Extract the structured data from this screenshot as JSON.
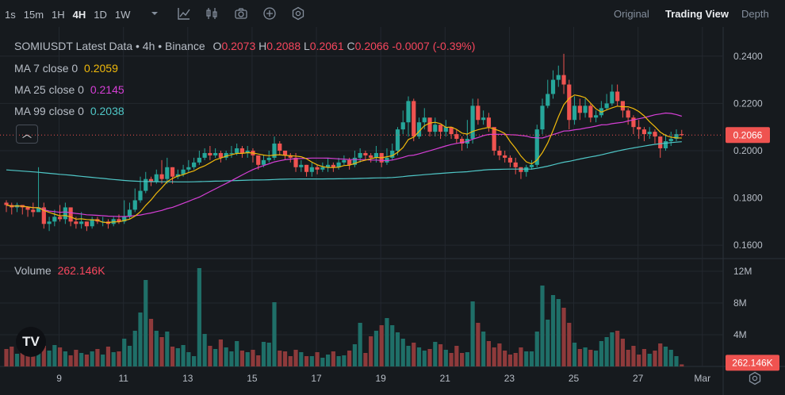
{
  "toolbar": {
    "timeframes": [
      "1s",
      "15m",
      "1H",
      "4H",
      "1D",
      "1W"
    ],
    "active_timeframe": "4H",
    "tools": [
      "dropdown-icon",
      "indicator-icon",
      "candle-type-icon",
      "camera-icon",
      "add-icon",
      "settings-icon"
    ],
    "views": [
      "Original",
      "Trading View",
      "Depth"
    ],
    "active_view": "Trading View"
  },
  "legend": {
    "title": "SOMIUSDT Latest Data • 4h • Binance",
    "open_label": "O",
    "open": "0.2073",
    "high_label": "H",
    "high": "0.2088",
    "low_label": "L",
    "low": "0.2061",
    "close_label": "C",
    "close": "0.2066",
    "change": "-0.0007 (-0.39%)",
    "ma7_label": "MA 7 close 0",
    "ma7_value": "0.2059",
    "ma25_label": "MA 25 close 0",
    "ma25_value": "0.2145",
    "ma99_label": "MA 99 close 0",
    "ma99_value": "0.2038",
    "volume_label": "Volume",
    "volume_value": "262.146K"
  },
  "colors": {
    "up": "#26a69a",
    "down": "#ef5350",
    "ma7": "#f0b90b",
    "ma25": "#d63fd6",
    "ma99": "#4fc7c7",
    "volume_up": "#1f6f68",
    "volume_down": "#8e3a3b"
  },
  "chart_data": {
    "type": "candlestick",
    "symbol": "SOMIUSDT",
    "interval": "4h",
    "price_axis": {
      "ticks": [
        "0.2400",
        "0.2200",
        "0.2000",
        "0.1800",
        "0.1600"
      ],
      "range": [
        0.155,
        0.249
      ]
    },
    "last_price_label": "0.2066",
    "volume_axis": {
      "ticks": [
        "12M",
        "8M",
        "4M"
      ],
      "range": [
        0,
        13000000
      ]
    },
    "last_volume_label": "262.146K",
    "x_ticks": [
      {
        "label": "9",
        "index": 6
      },
      {
        "label": "11",
        "index": 18
      },
      {
        "label": "13",
        "index": 30
      },
      {
        "label": "15",
        "index": 42
      },
      {
        "label": "17",
        "index": 54
      },
      {
        "label": "19",
        "index": 66
      },
      {
        "label": "21",
        "index": 78
      },
      {
        "label": "23",
        "index": 90
      },
      {
        "label": "25",
        "index": 102
      },
      {
        "label": "27",
        "index": 114
      },
      {
        "label": "Mar",
        "index": 126
      }
    ],
    "closes": [
      0.177,
      0.176,
      0.177,
      0.176,
      0.175,
      0.174,
      0.176,
      0.169,
      0.17,
      0.172,
      0.171,
      0.176,
      0.17,
      0.169,
      0.17,
      0.168,
      0.171,
      0.17,
      0.17,
      0.169,
      0.171,
      0.17,
      0.172,
      0.175,
      0.179,
      0.183,
      0.188,
      0.187,
      0.19,
      0.188,
      0.193,
      0.189,
      0.19,
      0.192,
      0.193,
      0.195,
      0.197,
      0.199,
      0.198,
      0.199,
      0.197,
      0.199,
      0.199,
      0.201,
      0.199,
      0.2,
      0.198,
      0.194,
      0.196,
      0.197,
      0.203,
      0.2,
      0.198,
      0.197,
      0.193,
      0.194,
      0.191,
      0.193,
      0.192,
      0.193,
      0.194,
      0.193,
      0.195,
      0.196,
      0.194,
      0.197,
      0.199,
      0.198,
      0.197,
      0.199,
      0.195,
      0.197,
      0.2,
      0.209,
      0.212,
      0.221,
      0.206,
      0.212,
      0.214,
      0.208,
      0.211,
      0.208,
      0.21,
      0.207,
      0.205,
      0.203,
      0.205,
      0.219,
      0.213,
      0.214,
      0.21,
      0.2,
      0.198,
      0.197,
      0.195,
      0.193,
      0.191,
      0.193,
      0.194,
      0.209,
      0.219,
      0.224,
      0.23,
      0.232,
      0.228,
      0.213,
      0.219,
      0.216,
      0.219,
      0.214,
      0.215,
      0.218,
      0.22,
      0.225,
      0.221,
      0.217,
      0.214,
      0.21,
      0.209,
      0.207,
      0.208,
      0.206,
      0.201,
      0.204,
      0.205,
      0.207,
      0.2066
    ],
    "highs": [
      0.179,
      0.178,
      0.178,
      0.177,
      0.176,
      0.178,
      0.193,
      0.178,
      0.172,
      0.175,
      0.177,
      0.178,
      0.176,
      0.172,
      0.174,
      0.17,
      0.172,
      0.172,
      0.172,
      0.171,
      0.172,
      0.173,
      0.179,
      0.178,
      0.184,
      0.189,
      0.191,
      0.189,
      0.192,
      0.196,
      0.197,
      0.193,
      0.192,
      0.194,
      0.196,
      0.197,
      0.2,
      0.201,
      0.202,
      0.201,
      0.2,
      0.2,
      0.202,
      0.203,
      0.202,
      0.202,
      0.201,
      0.197,
      0.198,
      0.2,
      0.206,
      0.204,
      0.2,
      0.199,
      0.199,
      0.196,
      0.194,
      0.195,
      0.194,
      0.195,
      0.197,
      0.195,
      0.197,
      0.198,
      0.197,
      0.2,
      0.201,
      0.2,
      0.199,
      0.202,
      0.199,
      0.201,
      0.203,
      0.21,
      0.217,
      0.223,
      0.222,
      0.214,
      0.218,
      0.213,
      0.214,
      0.211,
      0.213,
      0.21,
      0.209,
      0.206,
      0.213,
      0.222,
      0.222,
      0.217,
      0.216,
      0.208,
      0.202,
      0.2,
      0.198,
      0.197,
      0.193,
      0.194,
      0.196,
      0.211,
      0.222,
      0.23,
      0.234,
      0.236,
      0.241,
      0.23,
      0.223,
      0.222,
      0.222,
      0.22,
      0.217,
      0.221,
      0.224,
      0.228,
      0.228,
      0.22,
      0.218,
      0.215,
      0.213,
      0.21,
      0.21,
      0.209,
      0.206,
      0.207,
      0.208,
      0.209,
      0.2088
    ],
    "lows": [
      0.174,
      0.173,
      0.174,
      0.173,
      0.172,
      0.172,
      0.175,
      0.167,
      0.166,
      0.168,
      0.17,
      0.169,
      0.168,
      0.167,
      0.167,
      0.166,
      0.167,
      0.169,
      0.168,
      0.167,
      0.168,
      0.169,
      0.169,
      0.171,
      0.174,
      0.178,
      0.182,
      0.185,
      0.186,
      0.186,
      0.186,
      0.186,
      0.188,
      0.189,
      0.191,
      0.192,
      0.194,
      0.196,
      0.196,
      0.197,
      0.195,
      0.196,
      0.197,
      0.198,
      0.197,
      0.197,
      0.195,
      0.192,
      0.193,
      0.195,
      0.196,
      0.198,
      0.196,
      0.195,
      0.191,
      0.191,
      0.189,
      0.189,
      0.19,
      0.191,
      0.191,
      0.191,
      0.192,
      0.194,
      0.192,
      0.193,
      0.195,
      0.196,
      0.195,
      0.195,
      0.193,
      0.194,
      0.196,
      0.198,
      0.207,
      0.206,
      0.204,
      0.205,
      0.209,
      0.206,
      0.206,
      0.205,
      0.206,
      0.205,
      0.203,
      0.2,
      0.201,
      0.203,
      0.211,
      0.211,
      0.208,
      0.198,
      0.196,
      0.195,
      0.193,
      0.19,
      0.188,
      0.189,
      0.192,
      0.193,
      0.207,
      0.218,
      0.222,
      0.227,
      0.224,
      0.209,
      0.211,
      0.213,
      0.214,
      0.212,
      0.212,
      0.214,
      0.217,
      0.219,
      0.219,
      0.214,
      0.211,
      0.207,
      0.205,
      0.204,
      0.205,
      0.203,
      0.197,
      0.2,
      0.202,
      0.204,
      0.2061
    ],
    "volumes": [
      2.2,
      2.5,
      1.6,
      1.7,
      2.4,
      3.1,
      4.2,
      2.6,
      2.0,
      2.7,
      2.4,
      1.9,
      1.4,
      2.1,
      1.7,
      1.5,
      1.9,
      2.2,
      1.5,
      2.5,
      1.8,
      1.9,
      3.5,
      2.6,
      4.5,
      6.8,
      10.9,
      6.0,
      4.5,
      3.7,
      4.4,
      2.5,
      2.3,
      2.7,
      1.8,
      1.3,
      12.4,
      4.1,
      2.6,
      2.2,
      3.4,
      2.4,
      1.9,
      3.2,
      2.0,
      1.8,
      2.1,
      1.4,
      3.1,
      3.0,
      8.1,
      2.0,
      1.9,
      1.3,
      2.1,
      1.8,
      1.3,
      1.3,
      1.8,
      1.1,
      1.5,
      1.9,
      1.3,
      1.4,
      2.0,
      2.8,
      5.5,
      1.7,
      3.8,
      4.5,
      5.2,
      6.1,
      5.2,
      4.3,
      3.5,
      2.6,
      3.0,
      2.4,
      2.0,
      2.2,
      3.1,
      2.8,
      2.1,
      1.7,
      2.6,
      1.7,
      1.8,
      8.2,
      5.5,
      4.4,
      3.2,
      2.4,
      2.9,
      2.0,
      1.5,
      1.7,
      2.4,
      1.9,
      1.9,
      4.4,
      10.2,
      5.9,
      9.0,
      8.5,
      7.4,
      5.5,
      3.0,
      2.2,
      2.4,
      2.1,
      2.0,
      3.2,
      3.7,
      4.3,
      4.5,
      3.5,
      2.1,
      2.6,
      1.5,
      2.2,
      1.6,
      2.0,
      2.9,
      2.5,
      2.1,
      1.3,
      0.26
    ]
  }
}
